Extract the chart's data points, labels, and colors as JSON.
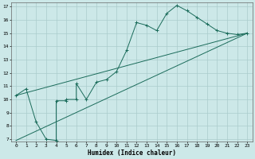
{
  "title": "",
  "xlabel": "Humidex (Indice chaleur)",
  "bg_color": "#cce8e8",
  "grid_color": "#aacccc",
  "line_color": "#1a6b5a",
  "xlim": [
    -0.5,
    23.5
  ],
  "ylim": [
    6.8,
    17.3
  ],
  "xticks": [
    0,
    1,
    2,
    3,
    4,
    5,
    6,
    7,
    8,
    9,
    10,
    11,
    12,
    13,
    14,
    15,
    16,
    17,
    18,
    19,
    20,
    21,
    22,
    23
  ],
  "yticks": [
    7,
    8,
    9,
    10,
    11,
    12,
    13,
    14,
    15,
    16,
    17
  ],
  "line1_x": [
    0,
    1,
    2,
    3,
    4,
    4,
    5,
    5,
    6,
    6,
    7,
    8,
    9,
    10,
    11,
    12,
    13,
    14,
    15,
    16,
    17,
    18,
    19,
    20,
    21,
    22,
    23
  ],
  "line1_y": [
    10.3,
    10.8,
    8.3,
    7.0,
    6.9,
    9.9,
    9.9,
    10.0,
    10.0,
    11.2,
    10.0,
    11.3,
    11.5,
    12.1,
    13.7,
    15.8,
    15.6,
    15.2,
    16.5,
    17.1,
    16.7,
    16.2,
    15.7,
    15.2,
    15.0,
    14.9,
    15.0
  ],
  "line2_x": [
    0,
    23
  ],
  "line2_y": [
    10.3,
    15.0
  ],
  "line3_x": [
    0,
    23
  ],
  "line3_y": [
    6.9,
    15.0
  ],
  "xlabel_fontsize": 5.5,
  "tick_fontsize": 4.5
}
